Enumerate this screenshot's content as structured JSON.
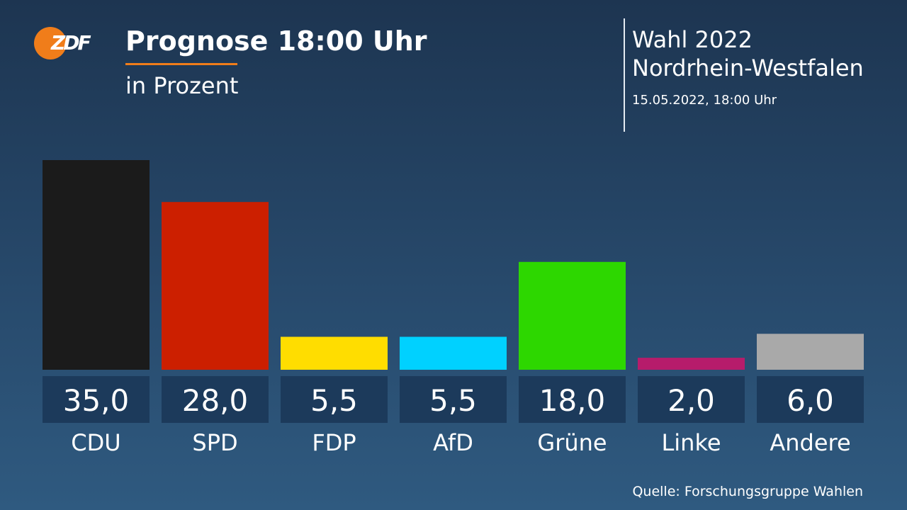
{
  "header": {
    "logo_text": "ZDF",
    "title": "Prognose 18:00 Uhr",
    "subtitle": "in Prozent",
    "election_line1": "Wahl 2022",
    "election_line2": "Nordrhein-Westfalen",
    "datetime": "15.05.2022, 18:00 Uhr"
  },
  "colors": {
    "logo": "#f07d1a",
    "accent_underline": "#f07d1a",
    "value_box": "#1c3a5b"
  },
  "footer": {
    "source": "Quelle: Forschungsgruppe Wahlen"
  },
  "chart_data": {
    "type": "bar",
    "title": "Prognose 18:00 Uhr",
    "subtitle": "in Prozent",
    "categories": [
      "CDU",
      "SPD",
      "FDP",
      "AfD",
      "Grüne",
      "Linke",
      "Andere"
    ],
    "values": [
      35.0,
      28.0,
      5.5,
      5.5,
      18.0,
      2.0,
      6.0
    ],
    "value_labels": [
      "35,0",
      "28,0",
      "5,5",
      "5,5",
      "18,0",
      "2,0",
      "6,0"
    ],
    "colors": [
      "#1b1b1b",
      "#cc1f00",
      "#ffdd00",
      "#00d1ff",
      "#2dd700",
      "#b61c6b",
      "#a9a9a9"
    ],
    "ylim": [
      0,
      35
    ],
    "grid": false,
    "legend": "none"
  }
}
